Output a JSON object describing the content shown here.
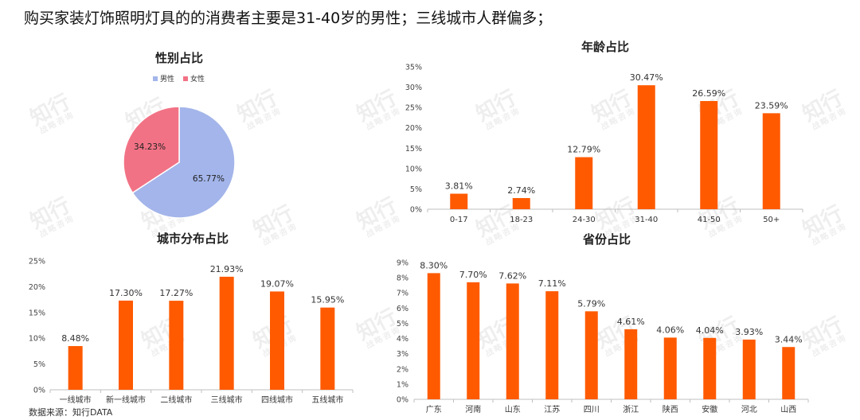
{
  "headline": "购买家装灯饰照明灯具的的消费者主要是31-40岁的男性；三线城市人群偏多；",
  "source": "数据来源：知行DATA",
  "watermark": {
    "main": "知行",
    "sub": "战略咨询"
  },
  "colors": {
    "bar": "#FF5A00",
    "male": "#A3B5EA",
    "female": "#F27285",
    "grid": "#D9D9D9",
    "axis": "#BFBFBF"
  },
  "chart_data": [
    {
      "id": "gender",
      "type": "pie",
      "title": "性别占比",
      "categories": [
        "男性",
        "女性"
      ],
      "values": [
        65.77,
        34.23
      ],
      "labels": [
        "65.77%",
        "34.23%"
      ],
      "legend": "top"
    },
    {
      "id": "age",
      "type": "bar",
      "title": "年龄占比",
      "categories": [
        "0-17",
        "18-23",
        "24-30",
        "31-40",
        "41-50",
        "50+"
      ],
      "values": [
        3.81,
        2.74,
        12.79,
        30.47,
        26.59,
        23.59
      ],
      "labels": [
        "3.81%",
        "2.74%",
        "12.79%",
        "30.47%",
        "26.59%",
        "23.59%"
      ],
      "ylim": [
        0,
        35
      ],
      "yticks": [
        "0%",
        "5%",
        "10%",
        "15%",
        "20%",
        "25%",
        "30%",
        "35%"
      ],
      "grid": false
    },
    {
      "id": "city",
      "type": "bar",
      "title": "城市分布占比",
      "categories": [
        "一线城市",
        "新一线城市",
        "二线城市",
        "三线城市",
        "四线城市",
        "五线城市"
      ],
      "values": [
        8.48,
        17.3,
        17.27,
        21.93,
        19.07,
        15.95
      ],
      "labels": [
        "8.48%",
        "17.30%",
        "17.27%",
        "21.93%",
        "19.07%",
        "15.95%"
      ],
      "ylim": [
        0,
        25
      ],
      "yticks": [
        "0%",
        "5%",
        "10%",
        "15%",
        "20%",
        "25%"
      ],
      "grid": false
    },
    {
      "id": "province",
      "type": "bar",
      "title": "省份占比",
      "categories": [
        "广东",
        "河南",
        "山东",
        "江苏",
        "四川",
        "浙江",
        "陕西",
        "安徽",
        "河北",
        "山西"
      ],
      "values": [
        8.3,
        7.7,
        7.62,
        7.11,
        5.79,
        4.61,
        4.06,
        4.04,
        3.93,
        3.44
      ],
      "labels": [
        "8.30%",
        "7.70%",
        "7.62%",
        "7.11%",
        "5.79%",
        "4.61%",
        "4.06%",
        "4.04%",
        "3.93%",
        "3.44%"
      ],
      "ylim": [
        0,
        9
      ],
      "yticks": [
        "0%",
        "1%",
        "2%",
        "3%",
        "4%",
        "5%",
        "6%",
        "7%",
        "8%",
        "9%"
      ],
      "grid": false
    }
  ]
}
